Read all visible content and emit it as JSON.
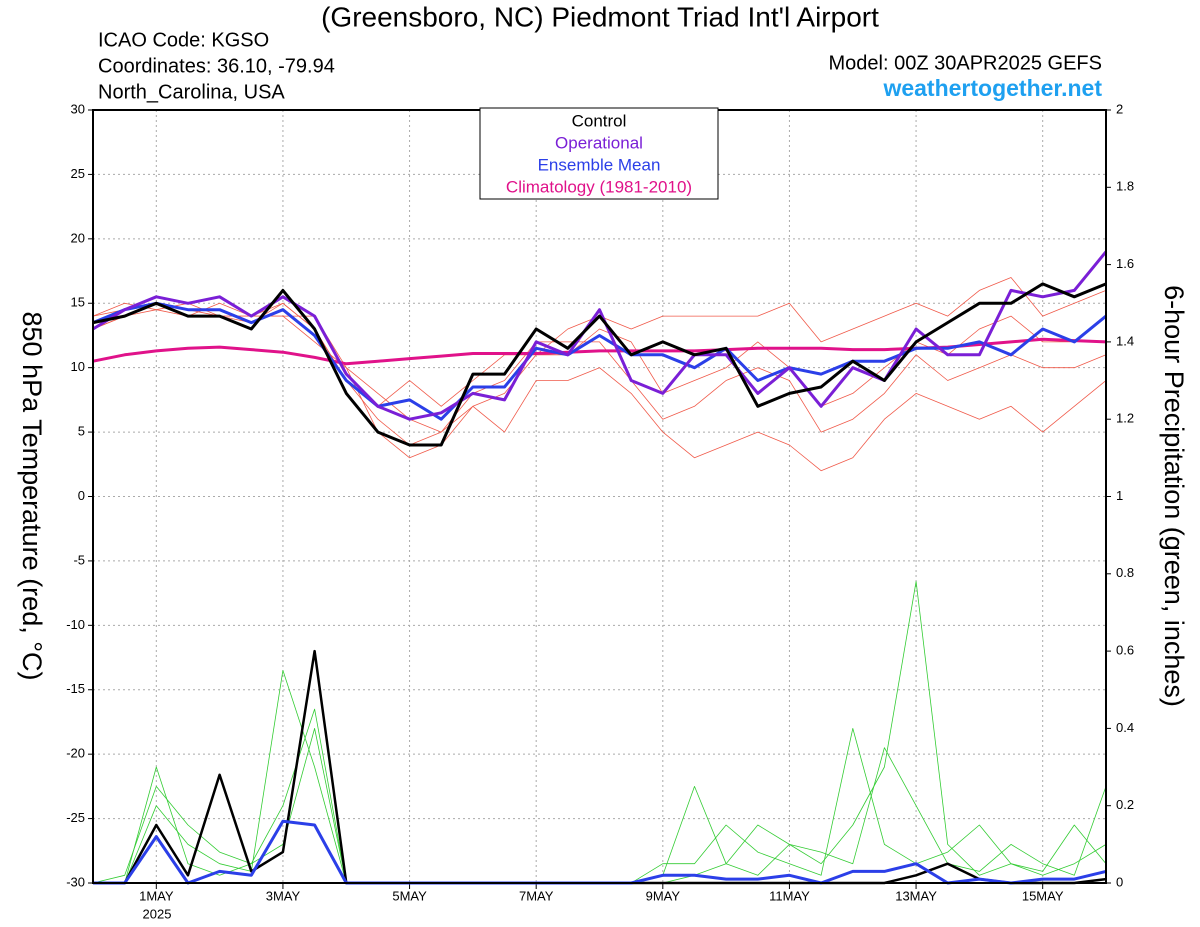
{
  "chart_data": {
    "type": "line",
    "title": "(Greensboro, NC) Piedmont Triad Int'l Airport",
    "info": [
      "ICAO Code: KGSO",
      "Coordinates: 36.10, -79.94",
      "North_Carolina, USA"
    ],
    "model": "Model: 00Z 30APR2025 GEFS",
    "website": "weathertogether.net",
    "ylabel": "850 hPa Temperature (red, °C)",
    "y2label": "6-hour Precipitation (green, inches)",
    "year_label": "2025",
    "legend": "top-center",
    "grid": true,
    "x": [
      0,
      12,
      24,
      36,
      48,
      60,
      72,
      84,
      96,
      108,
      120,
      132,
      144,
      156,
      168,
      180,
      192,
      204,
      216,
      228,
      240,
      252,
      264,
      276,
      288,
      300,
      312,
      324,
      336,
      348,
      360,
      372,
      384
    ],
    "xlim": [
      0,
      384
    ],
    "xticks": [
      {
        "value": 24,
        "label": "1MAY"
      },
      {
        "value": 72,
        "label": "3MAY"
      },
      {
        "value": 120,
        "label": "5MAY"
      },
      {
        "value": 168,
        "label": "7MAY"
      },
      {
        "value": 216,
        "label": "9MAY"
      },
      {
        "value": 264,
        "label": "11MAY"
      },
      {
        "value": 312,
        "label": "13MAY"
      },
      {
        "value": 360,
        "label": "15MAY"
      }
    ],
    "ylim": [
      -30,
      30
    ],
    "yticks": [
      -30,
      -25,
      -20,
      -15,
      -10,
      -5,
      0,
      5,
      10,
      15,
      20,
      25,
      30
    ],
    "y2lim": [
      0,
      2
    ],
    "y2ticks": [
      0,
      0.2,
      0.4,
      0.6,
      0.8,
      1,
      1.2,
      1.4,
      1.6,
      1.8,
      2
    ],
    "series": [
      {
        "color": "#f05a4a",
        "width": 0.8,
        "values": [
          14,
          14.5,
          15,
          14.5,
          14,
          13.5,
          15,
          13,
          9,
          6,
          4,
          5,
          7,
          8,
          11,
          11,
          13,
          12,
          8,
          9,
          10,
          12,
          10,
          7,
          8,
          10,
          12,
          11,
          13,
          14,
          12,
          12,
          14
        ]
      },
      {
        "color": "#f05a4a",
        "width": 0.8,
        "values": [
          13,
          14,
          14.5,
          15,
          14,
          14,
          14,
          12,
          10,
          8,
          6,
          5,
          8,
          9,
          12,
          12,
          12,
          9,
          6,
          7,
          9,
          10,
          9,
          5,
          6,
          8,
          11,
          9,
          10,
          11,
          10,
          10,
          11
        ]
      },
      {
        "color": "#f05a4a",
        "width": 0.8,
        "values": [
          14,
          15,
          14.5,
          14,
          15,
          14,
          15,
          13,
          9,
          7,
          9,
          7,
          9,
          11,
          11,
          13,
          14,
          13,
          14,
          14,
          14,
          14,
          15,
          12,
          13,
          14,
          15,
          14,
          16,
          17,
          14,
          15,
          16
        ]
      },
      {
        "color": "#f05a4a",
        "width": 0.8,
        "values": [
          13,
          14,
          15,
          14,
          14,
          14,
          14,
          14,
          10,
          5,
          3,
          4,
          7,
          5,
          9,
          9,
          10,
          8,
          5,
          3,
          4,
          5,
          4,
          2,
          3,
          6,
          8,
          7,
          6,
          7,
          5,
          7,
          9
        ]
      },
      {
        "color": "#33cc33",
        "width": 0.8,
        "axis": "y2",
        "values": [
          0,
          0,
          0.3,
          0.05,
          0.02,
          0.05,
          0.1,
          0.4,
          0,
          0,
          0,
          0,
          0,
          0,
          0,
          0,
          0,
          0,
          0.02,
          0.25,
          0.05,
          0.02,
          0.1,
          0.05,
          0.15,
          0.3,
          0.78,
          0.1,
          0.02,
          0.05,
          0.02,
          0.05,
          0.1
        ]
      },
      {
        "color": "#33cc33",
        "width": 0.8,
        "axis": "y2",
        "values": [
          0,
          0,
          0.2,
          0.1,
          0.05,
          0.03,
          0.55,
          0.3,
          0,
          0,
          0,
          0,
          0,
          0,
          0,
          0,
          0,
          0,
          0.05,
          0.05,
          0.15,
          0.08,
          0.05,
          0.02,
          0.4,
          0.1,
          0.05,
          0.08,
          0.15,
          0.05,
          0.03,
          0.15,
          0.05
        ]
      },
      {
        "color": "#33cc33",
        "width": 0.8,
        "axis": "y2",
        "values": [
          0,
          0.02,
          0.25,
          0.15,
          0.08,
          0.05,
          0.2,
          0.45,
          0,
          0,
          0,
          0,
          0,
          0,
          0,
          0,
          0,
          0,
          0,
          0.02,
          0.05,
          0.15,
          0.1,
          0.08,
          0.05,
          0.35,
          0.2,
          0.05,
          0.03,
          0.1,
          0.05,
          0.02,
          0.25
        ]
      },
      {
        "color": "#000000",
        "width": 2.5,
        "axis": "y2",
        "values": [
          0,
          0,
          0.15,
          0.02,
          0.28,
          0.03,
          0.08,
          0.6,
          0,
          0,
          0,
          0,
          0,
          0,
          0,
          0,
          0,
          0,
          0,
          0,
          0,
          0,
          0,
          0,
          0,
          0,
          0.02,
          0.05,
          0.01,
          0,
          0,
          0,
          0.01
        ]
      },
      {
        "color": "#2b3fe8",
        "width": 3,
        "axis": "y2",
        "values": [
          0,
          0,
          0.12,
          0,
          0.03,
          0.02,
          0.16,
          0.15,
          0,
          0,
          0,
          0,
          0,
          0,
          0,
          0,
          0,
          0,
          0.02,
          0.02,
          0.01,
          0.01,
          0.02,
          0,
          0.03,
          0.03,
          0.05,
          0,
          0.01,
          0,
          0.01,
          0.01,
          0.03
        ]
      },
      {
        "name": "Climatology (1981-2010)",
        "color": "#e0128a",
        "width": 3,
        "values": [
          10.5,
          11,
          11.3,
          11.5,
          11.6,
          11.4,
          11.2,
          10.8,
          10.3,
          10.5,
          10.7,
          10.9,
          11.1,
          11.1,
          11.1,
          11.2,
          11.3,
          11.3,
          11.3,
          11.3,
          11.4,
          11.5,
          11.5,
          11.5,
          11.4,
          11.4,
          11.5,
          11.6,
          11.8,
          12,
          12.2,
          12.1,
          12
        ]
      },
      {
        "name": "Ensemble Mean",
        "color": "#2b3fe8",
        "width": 3,
        "values": [
          13.5,
          14.5,
          15,
          14.5,
          14.5,
          13.5,
          14.5,
          12.5,
          9,
          7,
          7.5,
          6,
          8.5,
          8.5,
          11.5,
          11,
          12.5,
          11,
          11,
          10,
          11.5,
          9,
          10,
          9.5,
          10.5,
          10.5,
          11.5,
          11.5,
          12,
          11,
          13,
          12,
          14
        ]
      },
      {
        "name": "Operational",
        "color": "#7a1fd6",
        "width": 3,
        "values": [
          13,
          14.5,
          15.5,
          15,
          15.5,
          14,
          15.5,
          14,
          9.5,
          7,
          6,
          6.5,
          8,
          7.5,
          12,
          11,
          14.5,
          9,
          8,
          11,
          11,
          8,
          10,
          7,
          10,
          9,
          13,
          11,
          11,
          16,
          15.5,
          16,
          19
        ]
      },
      {
        "name": "Control",
        "color": "#000000",
        "width": 3,
        "values": [
          13.5,
          14,
          15,
          14,
          14,
          13,
          16,
          13,
          8,
          5,
          4,
          4,
          9.5,
          9.5,
          13,
          11.5,
          14,
          11,
          12,
          11,
          11.5,
          7,
          8,
          8.5,
          10.5,
          9,
          12,
          13.5,
          15,
          15,
          16.5,
          15.5,
          16.5
        ]
      }
    ]
  }
}
